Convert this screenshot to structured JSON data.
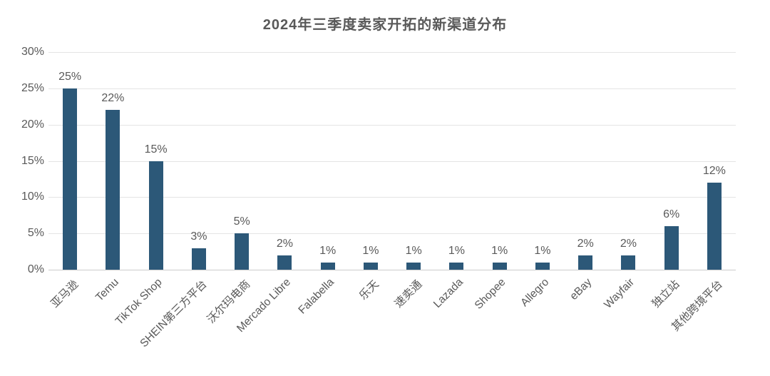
{
  "chart_data": {
    "type": "bar",
    "title": "2024年三季度卖家开拓的新渠道分布",
    "categories": [
      "亚马逊",
      "Temu",
      "TikTok Shop",
      "SHEIN第三方平台",
      "沃尔玛电商",
      "Mercado Libre",
      "Falabella",
      "乐天",
      "速卖通",
      "Lazada",
      "Shopee",
      "Allegro",
      "eBay",
      "Wayfair",
      "独立站",
      "其他跨境平台"
    ],
    "values": [
      25,
      22,
      15,
      3,
      5,
      2,
      1,
      1,
      1,
      1,
      1,
      1,
      2,
      2,
      6,
      12
    ],
    "value_labels": [
      "25%",
      "22%",
      "15%",
      "3%",
      "5%",
      "2%",
      "1%",
      "1%",
      "1%",
      "1%",
      "1%",
      "1%",
      "2%",
      "2%",
      "6%",
      "12%"
    ],
    "xlabel": "",
    "ylabel": "",
    "ylim": [
      0,
      30
    ],
    "ytick_step": 5,
    "ytick_labels": [
      "0%",
      "5%",
      "10%",
      "15%",
      "20%",
      "25%",
      "30%"
    ],
    "grid": true,
    "legend": false,
    "x_label_rotation_deg": 45,
    "colors": {
      "bar": "#2C5878",
      "text": "#595959",
      "gridline": "#E4E4E4",
      "axis_line": "#CCCCCC",
      "background": "#FFFFFF"
    }
  }
}
